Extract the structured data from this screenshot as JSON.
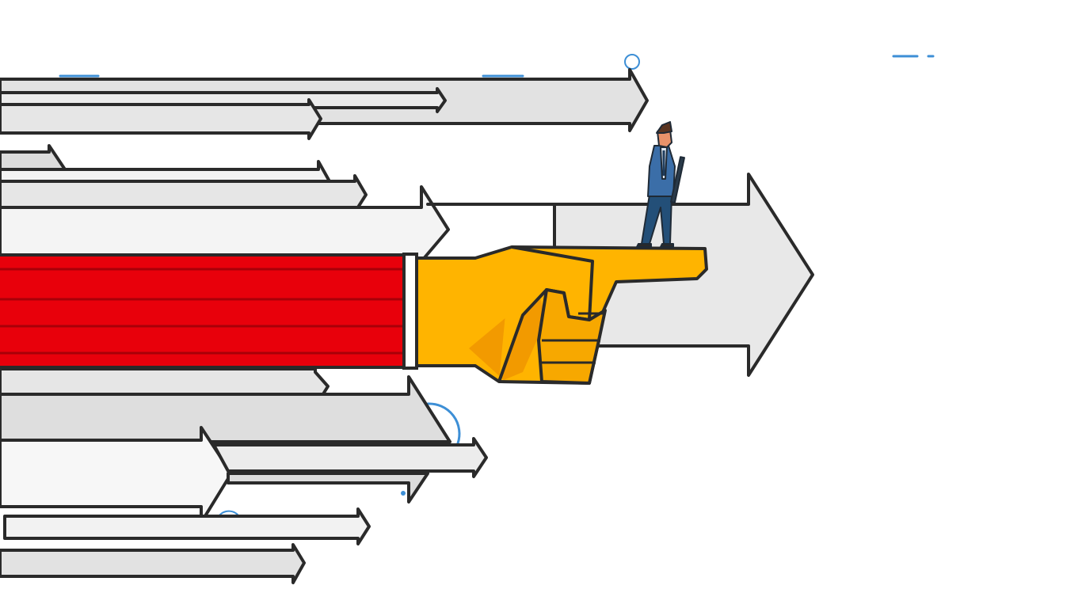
{
  "scene": {
    "description_tag": "illustration",
    "subject": "businessman-standing-on-pointing-hand",
    "colors": {
      "background": "#ffffff",
      "outline": "#2a2a2a",
      "arrow_light": "#f2f2f2",
      "arrow_mid": "#e6e6e6",
      "arrow_dark": "#dcdcdc",
      "sleeve": "#e8000b",
      "sleeve_stripe": "#a80008",
      "cuff": "#ffffff",
      "hand": "#ffb400",
      "hand_shadow": "#f29a00",
      "suit": "#3b6ea8",
      "pants": "#234f78",
      "skin": "#e8926a",
      "hair": "#5a3420",
      "accent_blue": "#3d8fd6"
    }
  }
}
